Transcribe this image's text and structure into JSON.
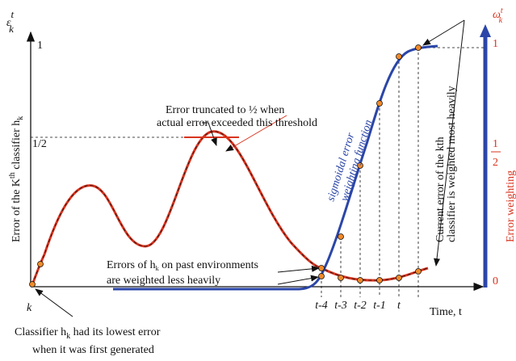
{
  "left_axis": {
    "symbol": "ε",
    "symbol_sub": "k",
    "symbol_sup": "t",
    "top_label": "1",
    "half_label": "1/2",
    "title": "Error of the K",
    "title_sup": "th",
    "title_rest": " classifier h",
    "title_sub": "k"
  },
  "x_axis": {
    "origin_label": "k",
    "title": "Time, t",
    "ticks": [
      "t-4",
      "t-3",
      "t-2",
      "t-1",
      "t"
    ]
  },
  "right_axis": {
    "symbol": "ω",
    "symbol_sub": "k",
    "symbol_sup": "t",
    "top_label": "1",
    "half_numerator": "1",
    "half_denominator": "2",
    "bottom_label": "0",
    "title": "Error weighting"
  },
  "annotations": {
    "truncation": [
      "Error truncated to ½ when",
      "actual error exceeded this threshold"
    ],
    "sigmoid": [
      "sigmoidal error",
      "weighting function"
    ],
    "current": [
      "Current error of the kth",
      "classifier is weighted most heavily"
    ],
    "past": [
      "Errors of  h",
      "k",
      " on past environments",
      "are weighted less heavily"
    ],
    "lowest": [
      "Classifier h",
      "k",
      " had its lowest error",
      "when it was first generated"
    ]
  }
}
